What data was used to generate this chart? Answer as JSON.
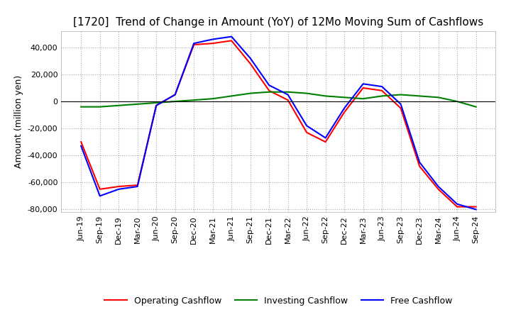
{
  "title": "[1720]  Trend of Change in Amount (YoY) of 12Mo Moving Sum of Cashflows",
  "ylabel": "Amount (million yen)",
  "ylim": [
    -82000,
    52000
  ],
  "yticks": [
    -80000,
    -60000,
    -40000,
    -20000,
    0,
    20000,
    40000
  ],
  "background_color": "#ffffff",
  "grid_color": "#aaaaaa",
  "x_labels": [
    "Jun-19",
    "Sep-19",
    "Dec-19",
    "Mar-20",
    "Jun-20",
    "Sep-20",
    "Dec-20",
    "Mar-21",
    "Jun-21",
    "Sep-21",
    "Dec-21",
    "Mar-22",
    "Jun-22",
    "Sep-22",
    "Dec-22",
    "Mar-23",
    "Jun-23",
    "Sep-23",
    "Dec-23",
    "Mar-24",
    "Jun-24",
    "Sep-24"
  ],
  "operating": [
    -30000,
    -65000,
    -63000,
    -62000,
    -3000,
    5000,
    42000,
    43000,
    45000,
    28000,
    8000,
    1000,
    -23000,
    -30000,
    -8000,
    10000,
    8000,
    -5000,
    -48000,
    -65000,
    -78000,
    -78000
  ],
  "investing": [
    -4000,
    -4000,
    -3000,
    -2000,
    -1000,
    0,
    1000,
    2000,
    4000,
    6000,
    7000,
    7000,
    6000,
    4000,
    3000,
    2000,
    4000,
    5000,
    4000,
    3000,
    0,
    -4000
  ],
  "free": [
    -33000,
    -70000,
    -65000,
    -63000,
    -3000,
    5000,
    43000,
    46000,
    48000,
    32000,
    12000,
    5000,
    -18000,
    -27000,
    -5000,
    13000,
    11000,
    -2000,
    -45000,
    -63000,
    -76000,
    -80000
  ],
  "line_colors": {
    "operating": "#ff0000",
    "investing": "#008000",
    "free": "#0000ff"
  },
  "legend_labels": {
    "operating": "Operating Cashflow",
    "investing": "Investing Cashflow",
    "free": "Free Cashflow"
  },
  "title_fontsize": 11,
  "axis_fontsize": 9,
  "tick_fontsize": 8
}
